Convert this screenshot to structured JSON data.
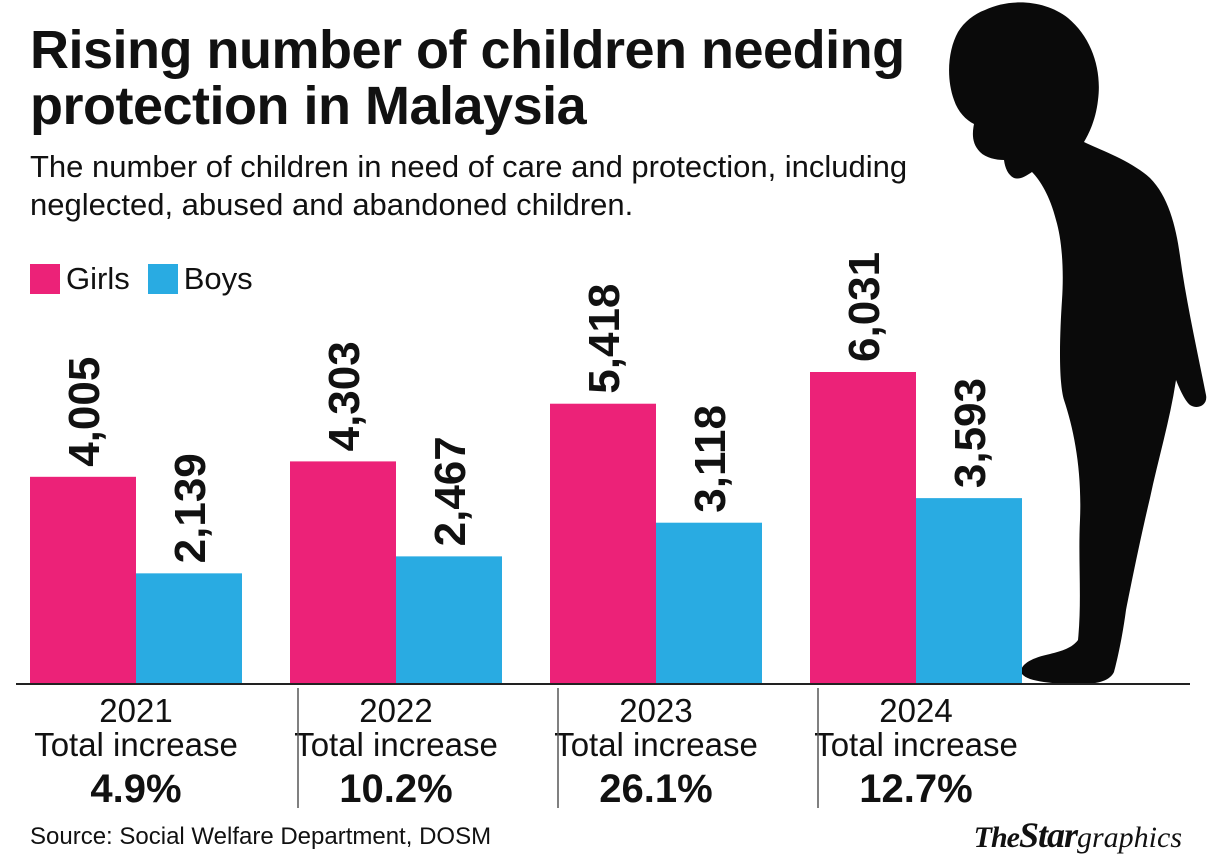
{
  "header": {
    "title": "Rising number of children needing protection in Malaysia",
    "subtitle": "The number of children in need of care and protection, including neglected, abused and abandoned children."
  },
  "legend": {
    "girls": "Girls",
    "boys": "Boys"
  },
  "colors": {
    "girls": "#ec2278",
    "boys": "#29abe2",
    "silhouette": "#0a0a0a"
  },
  "chart_data": {
    "type": "bar",
    "title": "Rising number of children needing protection in Malaysia",
    "xlabel": "",
    "ylabel": "",
    "ylim": [
      0,
      7000
    ],
    "grid": false,
    "legend_position": "top-left",
    "categories": [
      "2021",
      "2022",
      "2023",
      "2024"
    ],
    "series": [
      {
        "name": "Girls",
        "values": [
          4005,
          4303,
          5418,
          6031
        ],
        "labels": [
          "4,005",
          "4,303",
          "5,418",
          "6,031"
        ]
      },
      {
        "name": "Boys",
        "values": [
          2139,
          2467,
          3118,
          3593
        ],
        "labels": [
          "2,139",
          "2,467",
          "3,118",
          "3,593"
        ]
      }
    ],
    "increase_label": "Total increase",
    "increases": [
      "4.9%",
      "10.2%",
      "26.1%",
      "12.7%"
    ]
  },
  "footer": {
    "source": "Source: Social Welfare Department, DOSM",
    "brand_the": "The",
    "brand_star": "Star",
    "brand_graphics": "graphics"
  },
  "illustration": {
    "icon": "child-silhouette-icon"
  }
}
